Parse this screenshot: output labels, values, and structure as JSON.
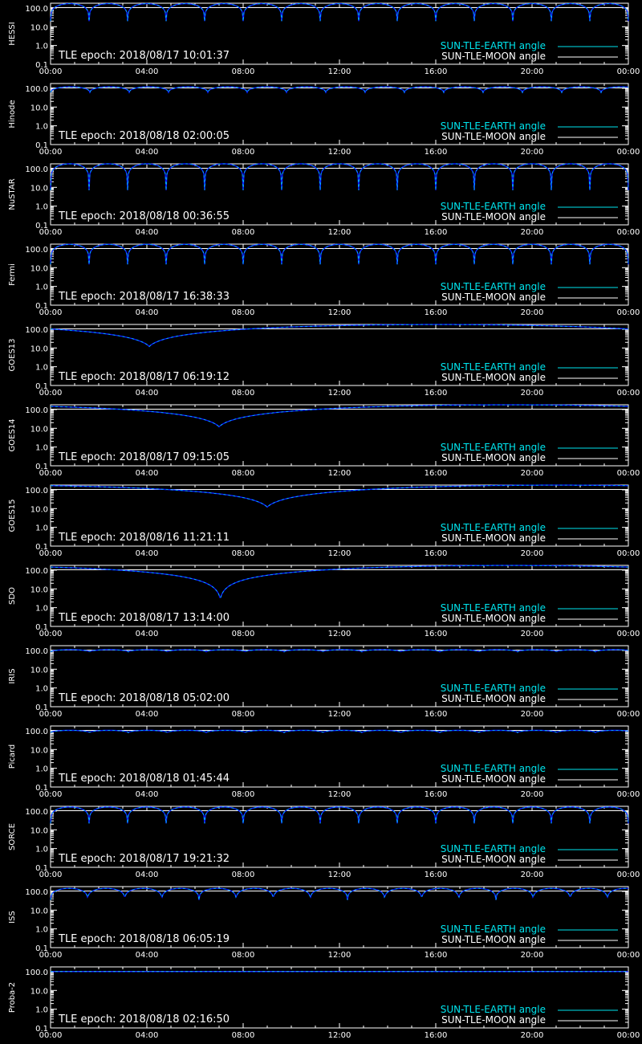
{
  "colors": {
    "background": "#000000",
    "axis": "#ffffff",
    "sun_earth": "#00e5ee",
    "sun_moon": "#ffffff",
    "fill_curve": "#0a1cff"
  },
  "x_ticks": [
    "00:00",
    "04:00",
    "08:00",
    "12:00",
    "16:00",
    "20:00",
    "00:00"
  ],
  "y_ticks": [
    "100.0",
    "10.0",
    "1.0",
    "0.1"
  ],
  "legend": {
    "earth": "SUN-TLE-EARTH angle",
    "moon": "SUN-TLE-MOON angle"
  },
  "chart_data": [
    {
      "type": "line",
      "ylabel": "HESSI",
      "epoch_label": "TLE epoch: 2018/08/17 10:01:37",
      "x_range": [
        "00:00",
        "24:00"
      ],
      "ylim": [
        0.1,
        180
      ],
      "y_scale": "log",
      "series": [
        {
          "name": "SUN-TLE-EARTH angle",
          "pattern": "periodic",
          "period_min": 96,
          "min_value": 20,
          "max_value": 170
        },
        {
          "name": "SUN-TLE-MOON angle",
          "value": 105
        }
      ]
    },
    {
      "type": "line",
      "ylabel": "Hinode",
      "epoch_label": "TLE epoch: 2018/08/18 02:00:05",
      "x_range": [
        "00:00",
        "24:00"
      ],
      "ylim": [
        0.1,
        180
      ],
      "y_scale": "log",
      "series": [
        {
          "name": "SUN-TLE-EARTH angle",
          "pattern": "periodic",
          "period_min": 98,
          "min_value": 60,
          "max_value": 120
        },
        {
          "name": "SUN-TLE-MOON angle",
          "value": 105
        }
      ]
    },
    {
      "type": "line",
      "ylabel": "NuSTAR",
      "epoch_label": "TLE epoch: 2018/08/18 00:36:55",
      "x_range": [
        "00:00",
        "24:00"
      ],
      "ylim": [
        0.1,
        180
      ],
      "y_scale": "log",
      "series": [
        {
          "name": "SUN-TLE-EARTH angle",
          "pattern": "periodic",
          "period_min": 96,
          "min_value": 7,
          "max_value": 180
        },
        {
          "name": "SUN-TLE-MOON angle",
          "value": 105
        }
      ]
    },
    {
      "type": "line",
      "ylabel": "Fermi",
      "epoch_label": "TLE epoch: 2018/08/17 16:38:33",
      "x_range": [
        "00:00",
        "24:00"
      ],
      "ylim": [
        0.1,
        180
      ],
      "y_scale": "log",
      "series": [
        {
          "name": "SUN-TLE-EARTH angle",
          "pattern": "periodic",
          "period_min": 96,
          "min_value": 15,
          "max_value": 175
        },
        {
          "name": "SUN-TLE-MOON angle",
          "value": 105
        }
      ]
    },
    {
      "type": "line",
      "ylabel": "GOES13",
      "epoch_label": "TLE epoch: 2018/08/17 06:19:12",
      "x_range": [
        "00:00",
        "24:00"
      ],
      "ylim": [
        0.1,
        180
      ],
      "y_scale": "log",
      "series": [
        {
          "name": "SUN-TLE-EARTH angle",
          "pattern": "geo",
          "min_time_hr": 4.1,
          "min_value": 12,
          "max_value": 178
        },
        {
          "name": "SUN-TLE-MOON angle",
          "value": 105
        }
      ]
    },
    {
      "type": "line",
      "ylabel": "GOES14",
      "epoch_label": "TLE epoch: 2018/08/17 09:15:05",
      "x_range": [
        "00:00",
        "24:00"
      ],
      "ylim": [
        0.1,
        180
      ],
      "y_scale": "log",
      "series": [
        {
          "name": "SUN-TLE-EARTH angle",
          "pattern": "geo",
          "min_time_hr": 7.0,
          "min_value": 12,
          "max_value": 178
        },
        {
          "name": "SUN-TLE-MOON angle",
          "value": 105
        }
      ]
    },
    {
      "type": "line",
      "ylabel": "GOES15",
      "epoch_label": "TLE epoch: 2018/08/16 11:21:11",
      "x_range": [
        "00:00",
        "24:00"
      ],
      "ylim": [
        0.1,
        180
      ],
      "y_scale": "log",
      "series": [
        {
          "name": "SUN-TLE-EARTH angle",
          "pattern": "geo",
          "min_time_hr": 9.0,
          "min_value": 12,
          "max_value": 178
        },
        {
          "name": "SUN-TLE-MOON angle",
          "value": 105
        }
      ]
    },
    {
      "type": "line",
      "ylabel": "SDO",
      "epoch_label": "TLE epoch: 2018/08/17 13:14:00",
      "x_range": [
        "00:00",
        "24:00"
      ],
      "ylim": [
        0.1,
        180
      ],
      "y_scale": "log",
      "series": [
        {
          "name": "SUN-TLE-EARTH angle",
          "pattern": "geo",
          "min_time_hr": 7.05,
          "min_value": 2.8,
          "max_value": 178
        },
        {
          "name": "SUN-TLE-MOON angle",
          "value": 105
        }
      ]
    },
    {
      "type": "line",
      "ylabel": "IRIS",
      "epoch_label": "TLE epoch: 2018/08/18 05:02:00",
      "x_range": [
        "00:00",
        "24:00"
      ],
      "ylim": [
        0.1,
        180
      ],
      "y_scale": "log",
      "series": [
        {
          "name": "SUN-TLE-EARTH angle",
          "pattern": "periodic",
          "period_min": 97,
          "min_value": 85,
          "max_value": 110
        },
        {
          "name": "SUN-TLE-MOON angle",
          "value": 105
        }
      ]
    },
    {
      "type": "line",
      "ylabel": "Picard",
      "epoch_label": "TLE epoch: 2018/08/18 01:45:44",
      "x_range": [
        "00:00",
        "24:00"
      ],
      "ylim": [
        0.1,
        180
      ],
      "y_scale": "log",
      "series": [
        {
          "name": "SUN-TLE-EARTH angle",
          "pattern": "periodic",
          "period_min": 97,
          "min_value": 80,
          "max_value": 105
        },
        {
          "name": "SUN-TLE-MOON angle",
          "value": 105
        }
      ]
    },
    {
      "type": "line",
      "ylabel": "SORCE",
      "epoch_label": "TLE epoch: 2018/08/17 19:21:32",
      "x_range": [
        "00:00",
        "24:00"
      ],
      "ylim": [
        0.1,
        180
      ],
      "y_scale": "log",
      "series": [
        {
          "name": "SUN-TLE-EARTH angle",
          "pattern": "periodic",
          "period_min": 96,
          "min_value": 22,
          "max_value": 165
        },
        {
          "name": "SUN-TLE-MOON angle",
          "value": 105
        }
      ]
    },
    {
      "type": "line",
      "ylabel": "ISS",
      "epoch_label": "TLE epoch: 2018/08/18 06:05:19",
      "x_range": [
        "00:00",
        "24:00"
      ],
      "ylim": [
        0.1,
        180
      ],
      "y_scale": "log",
      "series": [
        {
          "name": "SUN-TLE-EARTH angle",
          "pattern": "periodic",
          "period_min": 92.5,
          "min_value": 35,
          "max_value": 145
        },
        {
          "name": "SUN-TLE-MOON angle",
          "value": 105
        }
      ]
    },
    {
      "type": "line",
      "ylabel": "Proba-2",
      "epoch_label": "TLE epoch: 2018/08/18 02:16:50",
      "x_range": [
        "00:00",
        "24:00"
      ],
      "ylim": [
        0.1,
        180
      ],
      "y_scale": "log",
      "series": [
        {
          "name": "SUN-TLE-EARTH angle",
          "pattern": "flat",
          "value": 102
        },
        {
          "name": "SUN-TLE-MOON angle",
          "value": 105
        }
      ]
    }
  ]
}
